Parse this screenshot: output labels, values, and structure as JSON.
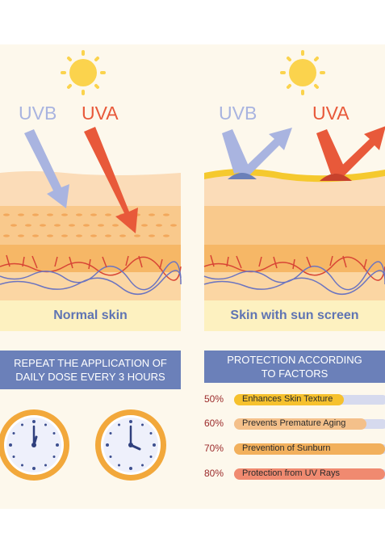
{
  "left_panel": {
    "uvb_label": "UVB",
    "uva_label": "UVA",
    "caption": "Normal skin"
  },
  "right_panel": {
    "uvb_label": "UVB",
    "uva_label": "UVA",
    "caption": "Skin with sun screen"
  },
  "reapply": {
    "line1": "REPEAT THE APPLICATION OF",
    "line2": "DAILY DOSE EVERY 3 HOURS"
  },
  "protection": {
    "line1": "PROTECTION ACCORDING",
    "line2": "TO FACTORS",
    "items": [
      {
        "percent": "50%",
        "label": "Enhances Skin Texture",
        "level": 0.5,
        "color": "#f6c12d"
      },
      {
        "percent": "60%",
        "label": "Prevents Premature Aging",
        "level": 0.6,
        "color": "#f4c08a"
      },
      {
        "percent": "70%",
        "label": "Prevention of Sunburn",
        "level": 0.7,
        "color": "#f2b05c"
      },
      {
        "percent": "80%",
        "label": "Protection from UV Rays",
        "level": 0.8,
        "color": "#f08a70"
      }
    ]
  },
  "colors": {
    "uvb": "#a9b4e0",
    "uva": "#e8593a",
    "sun": "#fbd34d",
    "banner": "#6b80b9",
    "clock_ring": "#f2a83b"
  }
}
